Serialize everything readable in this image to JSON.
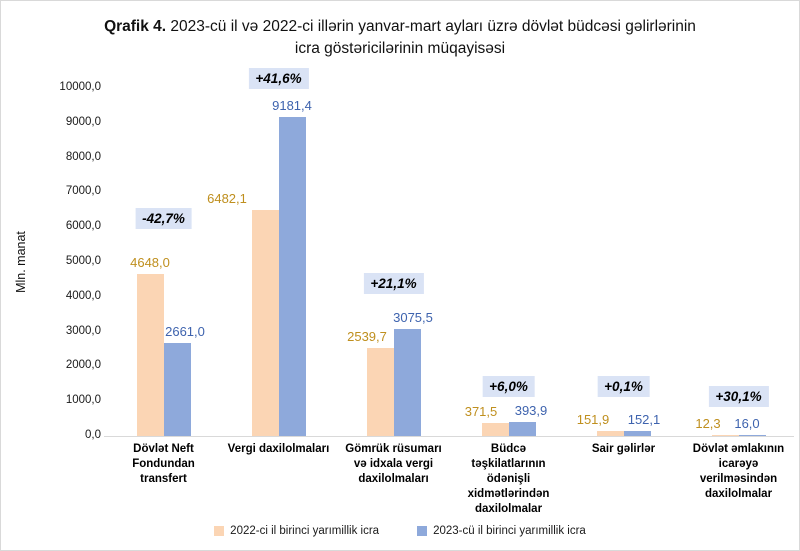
{
  "title": {
    "bold": "Qrafik 4.",
    "rest": " 2023-cü il və 2022-ci illərin yanvar-mart ayları üzrə dövlət büdcəsi gəlirlərinin icra göstəricilərinin müqayisəsi"
  },
  "chart_data": {
    "type": "bar",
    "title": "Qrafik 4. 2023-cü il və 2022-ci illərin yanvar-mart ayları üzrə dövlət büdcəsi gəlirlərinin icra göstəricilərinin müqayisəsi",
    "xlabel": "",
    "ylabel": "Mln. manat",
    "ylim": [
      0,
      10000
    ],
    "ytick_step": 1000,
    "yticks": [
      "0,0",
      "1000,0",
      "2000,0",
      "3000,0",
      "4000,0",
      "5000,0",
      "6000,0",
      "7000,0",
      "8000,0",
      "9000,0",
      "10000,0"
    ],
    "grid": false,
    "legend_position": "bottom",
    "categories": [
      "Dövlət Neft Fondundan transfert",
      "Vergi daxilolmaları",
      "Gömrük rüsumarı və idxala vergi daxilolmaları",
      "Büdcə təşkilatlarının ödənişli xidmətlərindən daxilolmalar",
      "Sair gəlirlər",
      "Dövlət əmlakının icarəyə verilməsindən daxilolmalar"
    ],
    "series": [
      {
        "name": "2022-ci il birinci yarımillik icra",
        "color": "#FBD5B4",
        "label_color": "#BF8F1E",
        "values": [
          4648.0,
          6482.1,
          2539.7,
          371.5,
          151.9,
          12.3
        ],
        "labels": [
          "4648,0",
          "6482,1",
          "2539,7",
          "371,5",
          "151,9",
          "12,3"
        ]
      },
      {
        "name": "2023-cü il birinci yarımillik icra",
        "color": "#8EA9DB",
        "label_color": "#3E63AE",
        "values": [
          2661.0,
          9181.4,
          3075.5,
          393.9,
          152.1,
          16.0
        ],
        "labels": [
          "2661,0",
          "9181,4",
          "3075,5",
          "393,9",
          "152,1",
          "16,0"
        ]
      }
    ],
    "change_badges": [
      "-42,7%",
      "+41,6%",
      "+21,1%",
      "+6,0%",
      "+0,1%",
      "+30,1%"
    ],
    "colors": {
      "badge_bg": "#DAE3F5",
      "axis_line": "#D9D9D9"
    },
    "layout": {
      "label_dx_2022": [
        0,
        -38,
        -13,
        -14,
        -17,
        -17
      ],
      "label_dx_2023": [
        8,
        0,
        6,
        9,
        7,
        -5
      ],
      "badge_dy": [
        17,
        0,
        7,
        -3,
        6,
        0
      ]
    }
  }
}
